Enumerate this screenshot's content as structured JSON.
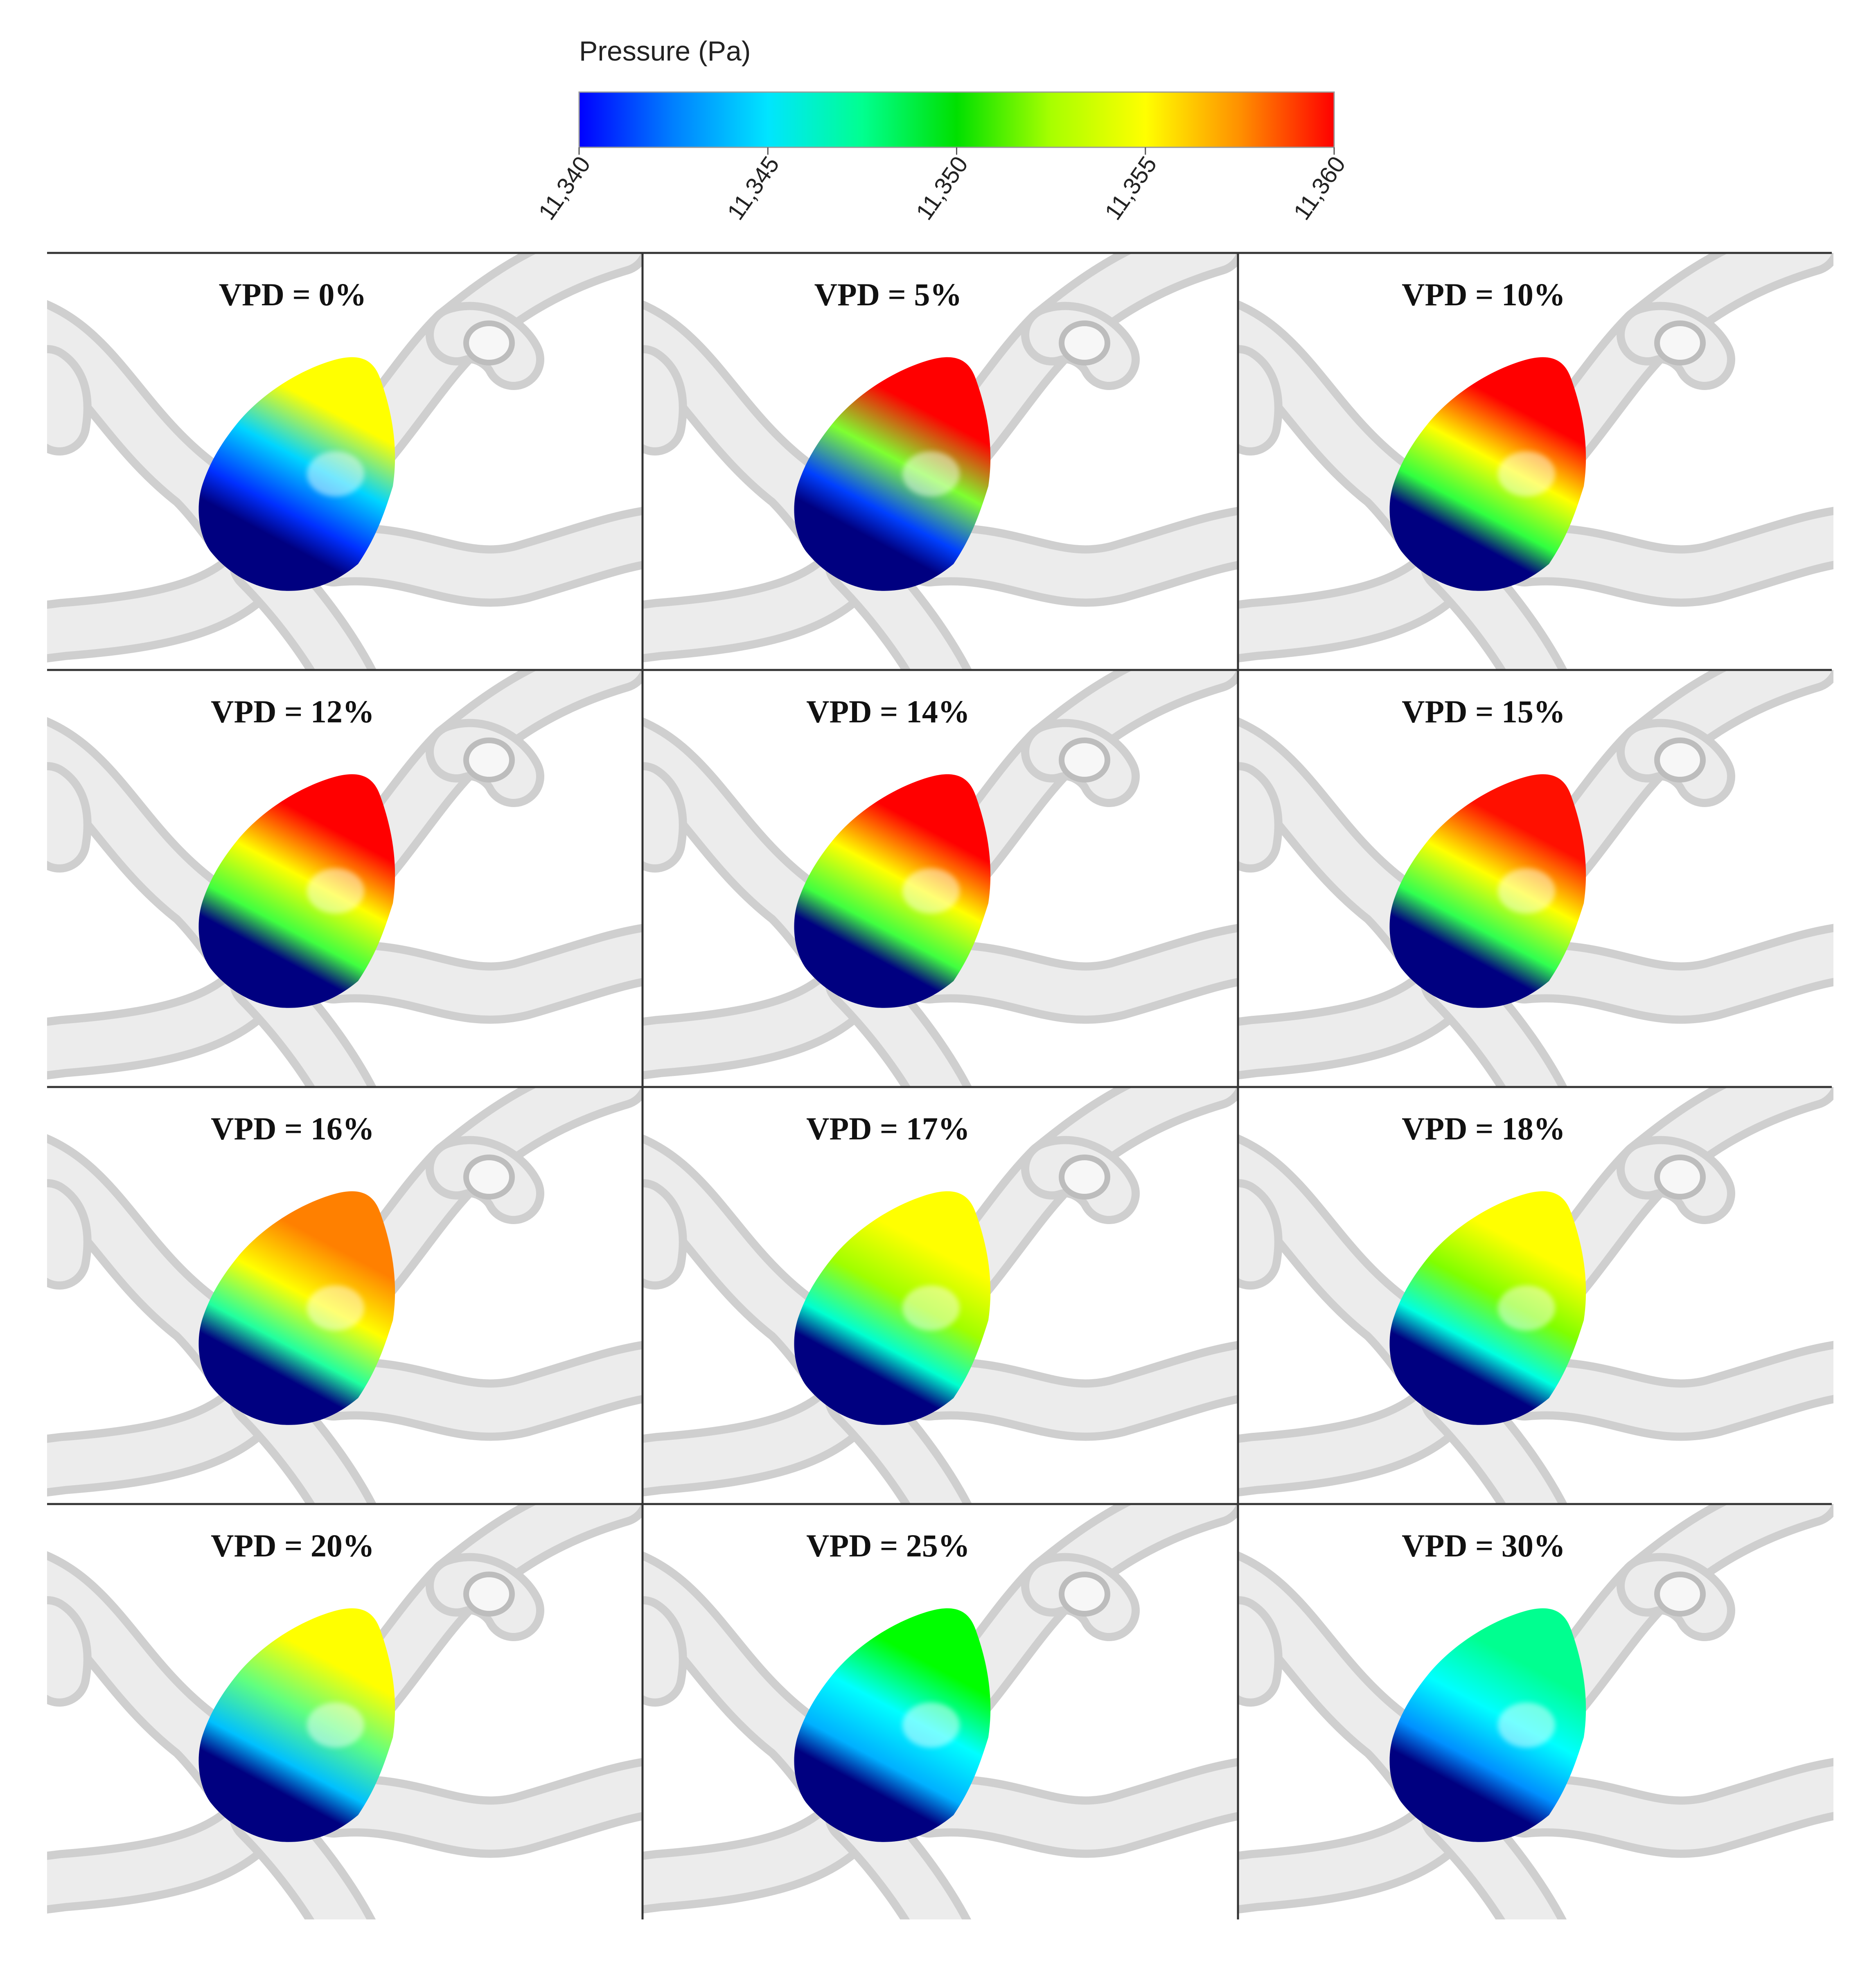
{
  "legend": {
    "title": "Pressure (Pa)",
    "ticks": [
      "11,340",
      "11,345",
      "11,350",
      "11,355",
      "11,360"
    ],
    "gradient": [
      "#0000ff",
      "#0080ff",
      "#00e5ff",
      "#00ff90",
      "#00e000",
      "#a8ff00",
      "#ffff00",
      "#ff9000",
      "#ff0000"
    ]
  },
  "panels": [
    {
      "label": "VPD = 0%",
      "colors": [
        "#000080",
        "#0030ff",
        "#00d5ff",
        "#ffff00"
      ]
    },
    {
      "label": "VPD = 5%",
      "colors": [
        "#000080",
        "#0040ff",
        "#7fff30",
        "#ff0000"
      ]
    },
    {
      "label": "VPD = 10%",
      "colors": [
        "#000080",
        "#30ff40",
        "#ffff00",
        "#ff0000"
      ]
    },
    {
      "label": "VPD = 12%",
      "colors": [
        "#000080",
        "#40ff40",
        "#ffff00",
        "#ff0000"
      ]
    },
    {
      "label": "VPD = 14%",
      "colors": [
        "#000080",
        "#40ff40",
        "#ffff00",
        "#ff0000"
      ]
    },
    {
      "label": "VPD = 15%",
      "colors": [
        "#000080",
        "#30ff50",
        "#ffff00",
        "#ff1000"
      ]
    },
    {
      "label": "VPD = 16%",
      "colors": [
        "#000080",
        "#20ffa0",
        "#ffff00",
        "#ff8000"
      ]
    },
    {
      "label": "VPD = 17%",
      "colors": [
        "#000080",
        "#00ffd0",
        "#a0ff00",
        "#ffff00"
      ]
    },
    {
      "label": "VPD = 18%",
      "colors": [
        "#000080",
        "#00ffe0",
        "#80ff00",
        "#ffff00"
      ]
    },
    {
      "label": "VPD = 20%",
      "colors": [
        "#000080",
        "#00c0ff",
        "#60ff80",
        "#ffff00"
      ]
    },
    {
      "label": "VPD = 25%",
      "colors": [
        "#000080",
        "#00b0ff",
        "#00ffff",
        "#00ff00"
      ]
    },
    {
      "label": "VPD = 30%",
      "colors": [
        "#000080",
        "#0090ff",
        "#00ffff",
        "#00ff90"
      ]
    }
  ]
}
